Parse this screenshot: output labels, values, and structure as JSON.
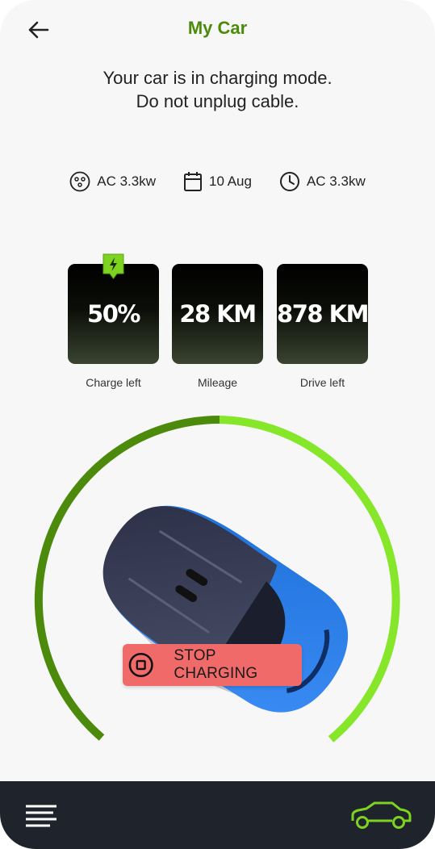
{
  "header": {
    "title": "My Car",
    "back_icon": "arrow-left-icon"
  },
  "status": {
    "line1": "Your car is in charging mode.",
    "line2": "Do not unplug cable."
  },
  "info": [
    {
      "icon": "charger-plug-icon",
      "text": "AC 3.3kw"
    },
    {
      "icon": "calendar-icon",
      "text": "10 Aug"
    },
    {
      "icon": "clock-icon",
      "text": "AC 3.3kw"
    }
  ],
  "stats": [
    {
      "value": "50%",
      "label": "Charge left"
    },
    {
      "value": "28 KM",
      "label": "Mileage"
    },
    {
      "value": "878 KM",
      "label": "Drive left"
    }
  ],
  "charge_gauge": {
    "level_fraction": 0.5,
    "colors": {
      "dark": "#4c8a0b",
      "light": "#86e62a"
    }
  },
  "stop_button": {
    "label": "STOP CHARGING",
    "icon": "stop-icon",
    "color": "#f06a6a"
  },
  "bottom_nav": {
    "menu_icon": "menu-icon",
    "car_icon": "car-icon",
    "accent": "#7ed321"
  }
}
